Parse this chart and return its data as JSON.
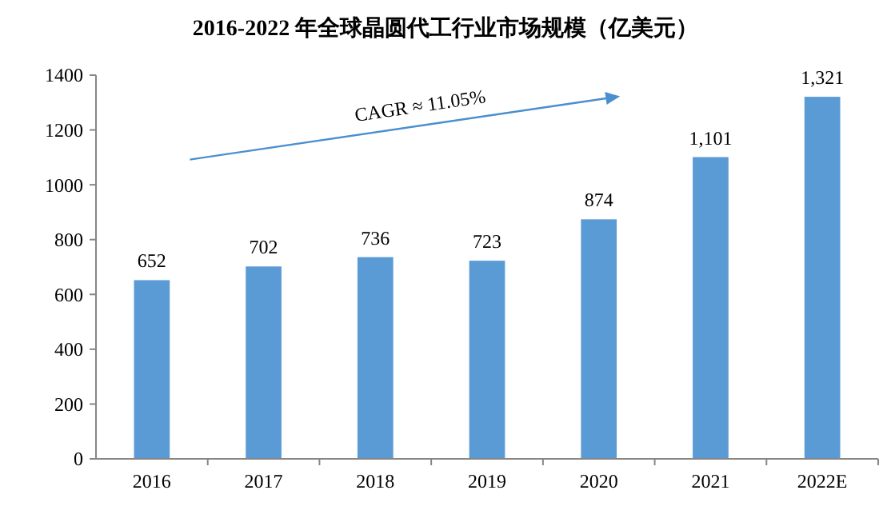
{
  "chart_data": {
    "type": "bar",
    "title": "2016-2022 年全球晶圆代工行业市场规模（亿美元）",
    "categories": [
      "2016",
      "2017",
      "2018",
      "2019",
      "2020",
      "2021",
      "2022E"
    ],
    "values": [
      652,
      702,
      736,
      723,
      874,
      1101,
      1321
    ],
    "value_labels": [
      "652",
      "702",
      "736",
      "723",
      "874",
      "1,101",
      "1,321"
    ],
    "color": "#5b9bd5",
    "ylim": [
      0,
      1400
    ],
    "yticks": [
      0,
      200,
      400,
      600,
      800,
      1000,
      1200,
      1400
    ],
    "annotations": [
      "CAGR ≈ 11.05%"
    ],
    "grid": false
  }
}
